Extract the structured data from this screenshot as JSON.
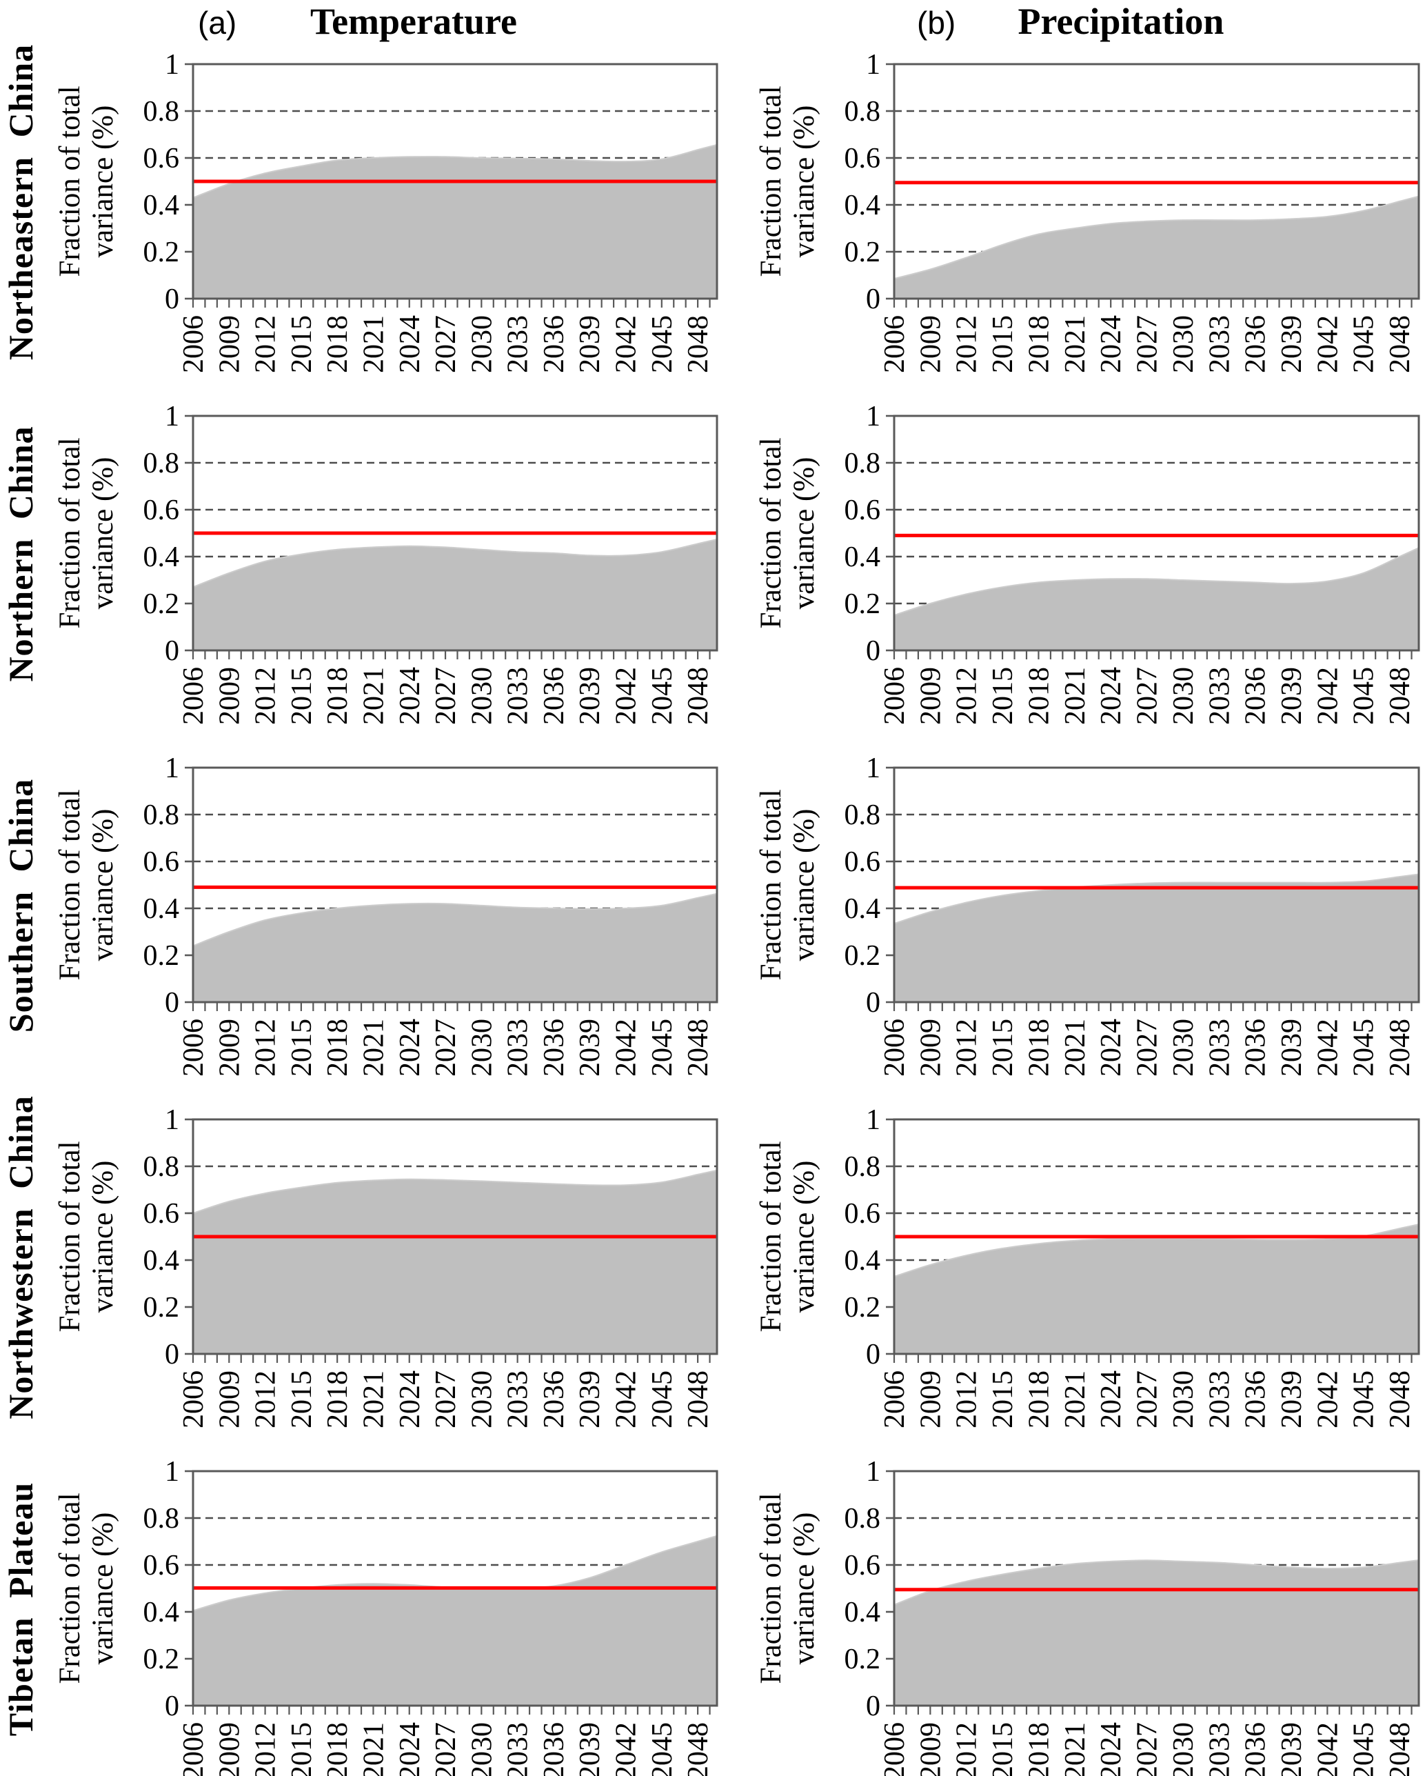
{
  "header": {
    "panel_a_label": "(a)",
    "panel_a_title": "Temperature",
    "panel_b_label": "(b)",
    "panel_b_title": "Precipitation"
  },
  "regions": [
    "Northeastern China",
    "Northern China",
    "Southern China",
    "Northwestern China",
    "Tibetan Plateau"
  ],
  "colors": {
    "area_fill": "#bfbfbf",
    "area_edge": "#cccccc",
    "red_line": "#ff0000",
    "gridline": "#4d4d4d",
    "axis_border": "#595959",
    "text": "#000000",
    "background": "#ffffff"
  },
  "chart_data": {
    "type": "area",
    "columns": [
      "Temperature",
      "Precipitation"
    ],
    "rows": [
      "Northeastern China",
      "Northern China",
      "Southern China",
      "Northwestern China",
      "Tibetan Plateau"
    ],
    "ylabel_lines": [
      "Fraction of total",
      "variance (%)"
    ],
    "ylabel": "Fraction of total variance (%)",
    "ylim": [
      0,
      1
    ],
    "y_tick_values": [
      0,
      0.2,
      0.4,
      0.6,
      0.8,
      1
    ],
    "y_tick_labels": [
      "0",
      "0.2",
      "0.4",
      "0.6",
      "0.8",
      "1"
    ],
    "grid_values": [
      0.2,
      0.4,
      0.6,
      0.8
    ],
    "grid_style": "dashed",
    "x_years": [
      2006,
      2009,
      2012,
      2015,
      2018,
      2021,
      2024,
      2027,
      2030,
      2033,
      2036,
      2039,
      2042,
      2045,
      2048
    ],
    "x_minor_tick_every_year": true,
    "x_axis_start": 2006,
    "x_axis_end": 2049.6,
    "legend": "none",
    "charts": [
      {
        "region": "Northeastern China",
        "variable": "Temperature",
        "values": [
          0.43,
          0.49,
          0.535,
          0.565,
          0.59,
          0.6,
          0.605,
          0.605,
          0.6,
          0.598,
          0.595,
          0.588,
          0.585,
          0.595,
          0.635
        ],
        "red_line_value": 0.5
      },
      {
        "region": "Northeastern China",
        "variable": "Precipitation",
        "values": [
          0.085,
          0.125,
          0.175,
          0.23,
          0.275,
          0.3,
          0.32,
          0.33,
          0.335,
          0.335,
          0.335,
          0.34,
          0.35,
          0.375,
          0.415
        ],
        "red_line_value": 0.495
      },
      {
        "region": "Northern China",
        "variable": "Temperature",
        "values": [
          0.27,
          0.33,
          0.38,
          0.41,
          0.43,
          0.44,
          0.445,
          0.44,
          0.43,
          0.42,
          0.415,
          0.405,
          0.405,
          0.42,
          0.455
        ],
        "red_line_value": 0.5
      },
      {
        "region": "Northern China",
        "variable": "Precipitation",
        "values": [
          0.15,
          0.2,
          0.24,
          0.27,
          0.29,
          0.3,
          0.305,
          0.305,
          0.3,
          0.295,
          0.29,
          0.285,
          0.295,
          0.33,
          0.4
        ],
        "red_line_value": 0.49
      },
      {
        "region": "Southern China",
        "variable": "Temperature",
        "values": [
          0.24,
          0.3,
          0.35,
          0.38,
          0.4,
          0.413,
          0.42,
          0.42,
          0.412,
          0.404,
          0.4,
          0.398,
          0.4,
          0.412,
          0.445
        ],
        "red_line_value": 0.49
      },
      {
        "region": "Southern China",
        "variable": "Precipitation",
        "values": [
          0.335,
          0.385,
          0.425,
          0.455,
          0.475,
          0.49,
          0.5,
          0.507,
          0.51,
          0.51,
          0.51,
          0.51,
          0.51,
          0.515,
          0.535
        ],
        "red_line_value": 0.488
      },
      {
        "region": "Northwestern China",
        "variable": "Temperature",
        "values": [
          0.6,
          0.65,
          0.685,
          0.71,
          0.73,
          0.74,
          0.745,
          0.742,
          0.737,
          0.731,
          0.725,
          0.72,
          0.72,
          0.732,
          0.765
        ],
        "red_line_value": 0.5
      },
      {
        "region": "Northwestern China",
        "variable": "Precipitation",
        "values": [
          0.33,
          0.38,
          0.42,
          0.45,
          0.47,
          0.483,
          0.49,
          0.492,
          0.492,
          0.49,
          0.488,
          0.487,
          0.49,
          0.502,
          0.535
        ],
        "red_line_value": 0.5
      },
      {
        "region": "Tibetan Plateau",
        "variable": "Temperature",
        "values": [
          0.405,
          0.45,
          0.48,
          0.5,
          0.515,
          0.52,
          0.515,
          0.505,
          0.5,
          0.5,
          0.51,
          0.545,
          0.6,
          0.655,
          0.7
        ],
        "red_line_value": 0.502
      },
      {
        "region": "Tibetan Plateau",
        "variable": "Precipitation",
        "values": [
          0.43,
          0.49,
          0.53,
          0.56,
          0.585,
          0.605,
          0.615,
          0.62,
          0.615,
          0.61,
          0.6,
          0.59,
          0.585,
          0.59,
          0.61
        ],
        "red_line_value": 0.495
      }
    ]
  }
}
